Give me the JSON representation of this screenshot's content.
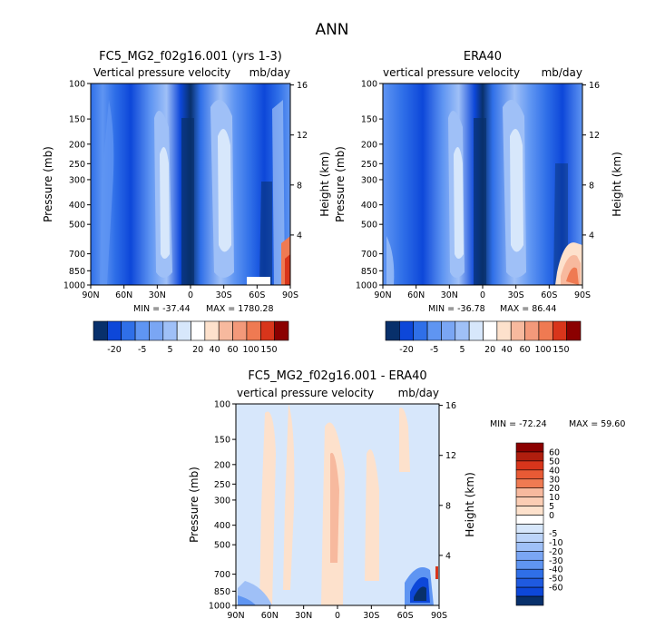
{
  "figure": {
    "title": "ANN"
  },
  "colors": {
    "neg3": "#08306b",
    "neg2": "#0d47d9",
    "neg1": "#2f6fe8",
    "neg05": "#5f95f2",
    "pos_small": "#9fc0f7",
    "pale": "#d7e7fb",
    "white": "#ffffff",
    "peach": "#fde1cc",
    "salmon": "#f7b99e",
    "orange": "#ef7a52",
    "red": "#d8351b",
    "dark_red": "#8b0000"
  },
  "chart_data": [
    {
      "type": "heatmap",
      "title": "FC5_MG2_f02g16.001 (yrs 1-3)",
      "subtitle_left": "Vertical pressure velocity",
      "subtitle_right": "mb/day",
      "xlabel": "",
      "ylabel": "Pressure (mb)",
      "y2label": "Height (km)",
      "x_ticks": [
        "90N",
        "60N",
        "30N",
        "0",
        "30S",
        "60S",
        "90S"
      ],
      "y_ticks": [
        100,
        150,
        200,
        250,
        300,
        400,
        500,
        700,
        850,
        1000
      ],
      "y2_ticks": [
        4,
        8,
        12,
        16
      ],
      "min_label": "MIN = -37.44",
      "max_label": "MAX = 1780.28",
      "min": -37.44,
      "max": 1780.28,
      "colorbar_labels": [
        "-20",
        "-5",
        "5",
        "20",
        "40",
        "60",
        "100",
        "150"
      ]
    },
    {
      "type": "heatmap",
      "title": "ERA40",
      "subtitle_left": "vertical pressure velocity",
      "subtitle_right": "mb/day",
      "xlabel": "",
      "ylabel": "Pressure (mb)",
      "y2label": "Height (km)",
      "x_ticks": [
        "90N",
        "60N",
        "30N",
        "0",
        "30S",
        "60S",
        "90S"
      ],
      "y_ticks": [
        100,
        150,
        200,
        250,
        300,
        400,
        500,
        700,
        850,
        1000
      ],
      "y2_ticks": [
        4,
        8,
        12,
        16
      ],
      "min_label": "MIN = -36.78",
      "max_label": "MAX = 86.44",
      "min": -36.78,
      "max": 86.44,
      "colorbar_labels": [
        "-20",
        "-5",
        "5",
        "20",
        "40",
        "60",
        "100",
        "150"
      ]
    },
    {
      "type": "heatmap",
      "title": "FC5_MG2_f02g16.001 - ERA40",
      "subtitle_left": "vertical pressure velocity",
      "subtitle_right": "mb/day",
      "xlabel": "",
      "ylabel": "Pressure (mb)",
      "y2label": "Height (km)",
      "x_ticks": [
        "90N",
        "60N",
        "30N",
        "0",
        "30S",
        "60S",
        "90S"
      ],
      "y_ticks": [
        100,
        150,
        200,
        250,
        300,
        400,
        500,
        700,
        850,
        1000
      ],
      "y2_ticks": [
        4,
        8,
        12,
        16
      ],
      "min_label": "MIN = -72.24",
      "max_label": "MAX = 59.60",
      "min": -72.24,
      "max": 59.6,
      "colorbar_labels": [
        "60",
        "50",
        "40",
        "30",
        "20",
        "10",
        "5",
        "0",
        "-5",
        "-10",
        "-20",
        "-30",
        "-40",
        "-50",
        "-60"
      ]
    }
  ]
}
